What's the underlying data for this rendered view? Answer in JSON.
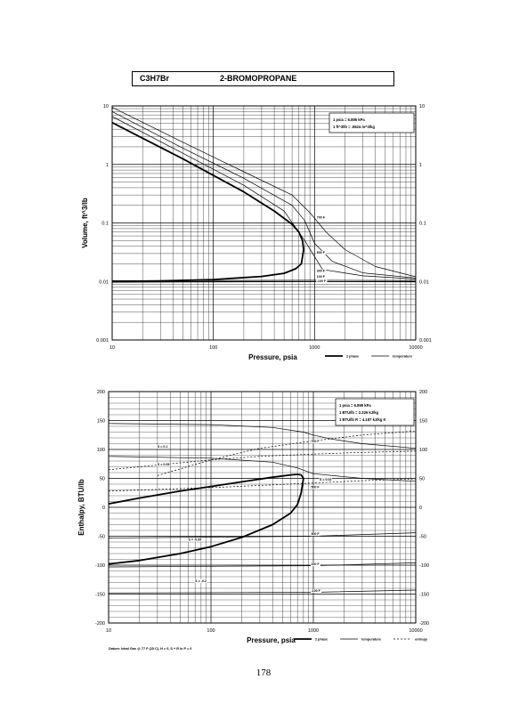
{
  "header": {
    "formula": "C3H7Br",
    "compound": "2-BROMOPROPANE"
  },
  "page_number": "178",
  "chart_data": [
    {
      "type": "line",
      "xscale": "log",
      "yscale": "log",
      "xlim": [
        10,
        10000
      ],
      "ylim": [
        0.001,
        10
      ],
      "x_ticks": [
        "10",
        "100",
        "1000",
        "10000"
      ],
      "y_ticks": [
        "0.001",
        "0.01",
        "0.1",
        "1",
        "10"
      ],
      "xlabel": "Pressure,  psia",
      "ylabel": "Volume, ft^3/lb",
      "grid": true,
      "legend_position": "bottom-right",
      "legend": [
        "2 phase",
        "temperature"
      ],
      "info_box": [
        "1 psia = 6.895 kPa",
        "1 ft^3/lb = .0624 m^3/kg"
      ],
      "series": [
        {
          "kind": "2 phase",
          "x": [
            10,
            20,
            50,
            100,
            200,
            400,
            600,
            700,
            760,
            780
          ],
          "y": [
            5.2,
            2.8,
            1.25,
            0.65,
            0.34,
            0.16,
            0.095,
            0.07,
            0.05,
            0.035
          ]
        },
        {
          "kind": "2 phase",
          "x": [
            10,
            30,
            100,
            300,
            500,
            650,
            740,
            780
          ],
          "y": [
            0.01,
            0.0102,
            0.0108,
            0.0122,
            0.0138,
            0.0165,
            0.02,
            0.035
          ]
        },
        {
          "kind": "temperature",
          "x": [
            10,
            50,
            200,
            600,
            900,
            1300,
            2000,
            4000,
            10000
          ],
          "y": [
            9.5,
            2.4,
            0.75,
            0.3,
            0.15,
            0.07,
            0.035,
            0.018,
            0.012
          ]
        },
        {
          "kind": "temperature",
          "x": [
            10,
            50,
            200,
            600,
            800,
            1000,
            1500,
            3000,
            10000
          ],
          "y": [
            8.0,
            1.9,
            0.58,
            0.2,
            0.11,
            0.045,
            0.022,
            0.014,
            0.0115
          ]
        },
        {
          "kind": "temperature",
          "x": [
            10,
            50,
            200,
            500,
            800,
            1200,
            3000,
            10000
          ],
          "y": [
            6.6,
            1.55,
            0.44,
            0.16,
            0.05,
            0.016,
            0.0125,
            0.011
          ]
        },
        {
          "kind": "temperature",
          "x": [
            10,
            1000,
            10000
          ],
          "y": [
            0.0103,
            0.0105,
            0.0104
          ]
        },
        {
          "kind": "temperature",
          "x": [
            10,
            1000,
            10000
          ],
          "y": [
            0.0097,
            0.0099,
            0.0098
          ]
        }
      ],
      "annotations": [
        {
          "text": "700 F",
          "x": 1050,
          "y": 0.12
        },
        {
          "text": "500 F",
          "x": 1050,
          "y": 0.03
        },
        {
          "text": "300 F",
          "x": 1050,
          "y": 0.0145
        },
        {
          "text": "100 F",
          "x": 1050,
          "y": 0.0117
        },
        {
          "text": "-100 F",
          "x": 1050,
          "y": 0.0098
        }
      ]
    },
    {
      "type": "line",
      "xscale": "log",
      "xlim": [
        10,
        10000
      ],
      "ylim": [
        -200,
        200
      ],
      "x_ticks": [
        "10",
        "100",
        "1000",
        "10000"
      ],
      "y_ticks": [
        "200",
        "150",
        "100",
        "50",
        "0",
        "-50",
        "-100",
        "-150",
        "-200"
      ],
      "xlabel": "Pressure,  psia",
      "ylabel": "Enthalpy, BTU/lb",
      "grid": true,
      "legend_position": "bottom-right",
      "legend": [
        "2 phase",
        "temperature",
        "entropy"
      ],
      "footnote": "Datum: Ideal Gas @ 77 F (25 C),  H = 0,  S + R ln P = 0",
      "info_box": [
        "1 psia = 6.895 kPa",
        "1 BTU/lb = 2.326 kJ/kg",
        "1 BTU/lb R = 4.187 kJ/kg K"
      ],
      "series": [
        {
          "kind": "2 phase",
          "x": [
            10,
            20,
            50,
            100,
            200,
            400,
            600,
            700,
            760,
            800
          ],
          "y": [
            6,
            16,
            28,
            36,
            44,
            52,
            56,
            57,
            56,
            50
          ]
        },
        {
          "kind": "2 phase",
          "x": [
            10,
            20,
            50,
            100,
            200,
            400,
            600,
            700,
            760,
            800
          ],
          "y": [
            -98,
            -92,
            -80,
            -68,
            -52,
            -30,
            -10,
            5,
            25,
            50
          ]
        },
        {
          "kind": "temperature",
          "x": [
            10,
            100,
            400,
            800,
            1000,
            1500,
            3000,
            10000
          ],
          "y": [
            145,
            143,
            138,
            130,
            125,
            118,
            110,
            102
          ]
        },
        {
          "kind": "temperature",
          "x": [
            10,
            100,
            400,
            700,
            1000,
            3000,
            10000
          ],
          "y": [
            88,
            85,
            78,
            68,
            58,
            50,
            45
          ]
        },
        {
          "kind": "temperature",
          "x": [
            10,
            1000,
            10000
          ],
          "y": [
            -53,
            -50,
            -44
          ]
        },
        {
          "kind": "temperature",
          "x": [
            10,
            1000,
            10000
          ],
          "y": [
            -103,
            -101,
            -96
          ]
        },
        {
          "kind": "temperature",
          "x": [
            10,
            1000,
            10000
          ],
          "y": [
            -148,
            -147,
            -143
          ]
        },
        {
          "kind": "entropy",
          "x": [
            30,
            100,
            300,
            1000,
            3000,
            10000
          ],
          "y": [
            55,
            82,
            102,
            115,
            125,
            132
          ]
        },
        {
          "kind": "entropy",
          "x": [
            10,
            100,
            300,
            1000,
            3000,
            10000
          ],
          "y": [
            65,
            82,
            88,
            92,
            95,
            97
          ]
        },
        {
          "kind": "entropy",
          "x": [
            10,
            100,
            1000,
            3000,
            10000
          ],
          "y": [
            28,
            34,
            42,
            46,
            49
          ]
        }
      ],
      "annotations": [
        {
          "text": "S = 0.1",
          "x": 30,
          "y": 103
        },
        {
          "text": "S = 0.05",
          "x": 30,
          "y": 72
        },
        {
          "text": "S = 0.02",
          "x": 1150,
          "y": 46
        },
        {
          "text": "S = -0.05",
          "x": 60,
          "y": -58
        },
        {
          "text": "S = -0.2",
          "x": 70,
          "y": -129
        },
        {
          "text": "700 F",
          "x": 950,
          "y": 112
        },
        {
          "text": "500 F",
          "x": 950,
          "y": 33
        },
        {
          "text": "300 F",
          "x": 950,
          "y": -48
        },
        {
          "text": "100 F",
          "x": 950,
          "y": -100
        },
        {
          "text": "-100 F",
          "x": 950,
          "y": -146
        }
      ]
    }
  ]
}
